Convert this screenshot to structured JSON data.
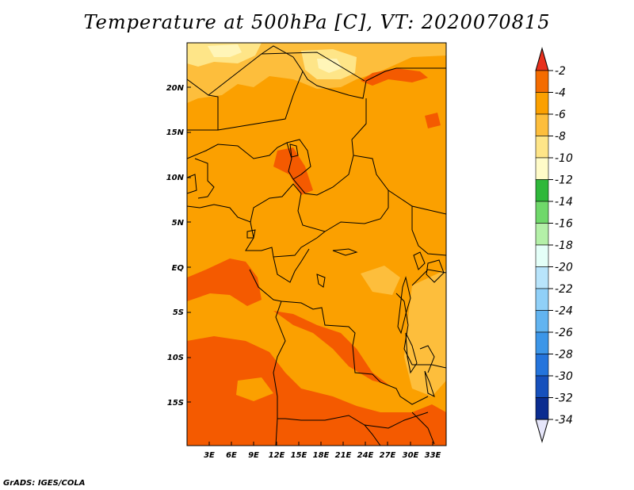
{
  "title": "Temperature at 500hPa [C], VT: 2020070815",
  "credit": "GrADS: IGES/COLA",
  "map": {
    "lat_labels": [
      "20N",
      "15N",
      "10N",
      "5N",
      "EQ",
      "5S",
      "10S",
      "15S"
    ],
    "lon_labels": [
      "3E",
      "6E",
      "9E",
      "12E",
      "15E",
      "18E",
      "21E",
      "24E",
      "27E",
      "30E",
      "33E"
    ],
    "colors": {
      "warmest": "#f45a00",
      "warm": "#fba000",
      "mid": "#fdbe3c",
      "cool": "#fee588",
      "coolest": "#fff5b8",
      "border": "#000000"
    }
  },
  "colorbar": {
    "labels": [
      "-2",
      "-4",
      "-6",
      "-8",
      "-10",
      "-12",
      "-14",
      "-16",
      "-18",
      "-20",
      "-22",
      "-24",
      "-26",
      "-28",
      "-30",
      "-32",
      "-34"
    ],
    "colors": [
      "#e8301c",
      "#f46c00",
      "#fba000",
      "#fdbe3c",
      "#fee588",
      "#fffbc8",
      "#2fb83a",
      "#6fd86a",
      "#b4f0a8",
      "#e4fff8",
      "#b8e4fb",
      "#90d0f8",
      "#62b4f0",
      "#3c96e8",
      "#2474dc",
      "#1650bc",
      "#0a2c90",
      "#0a0a6a",
      "#e6e6fa"
    ]
  }
}
